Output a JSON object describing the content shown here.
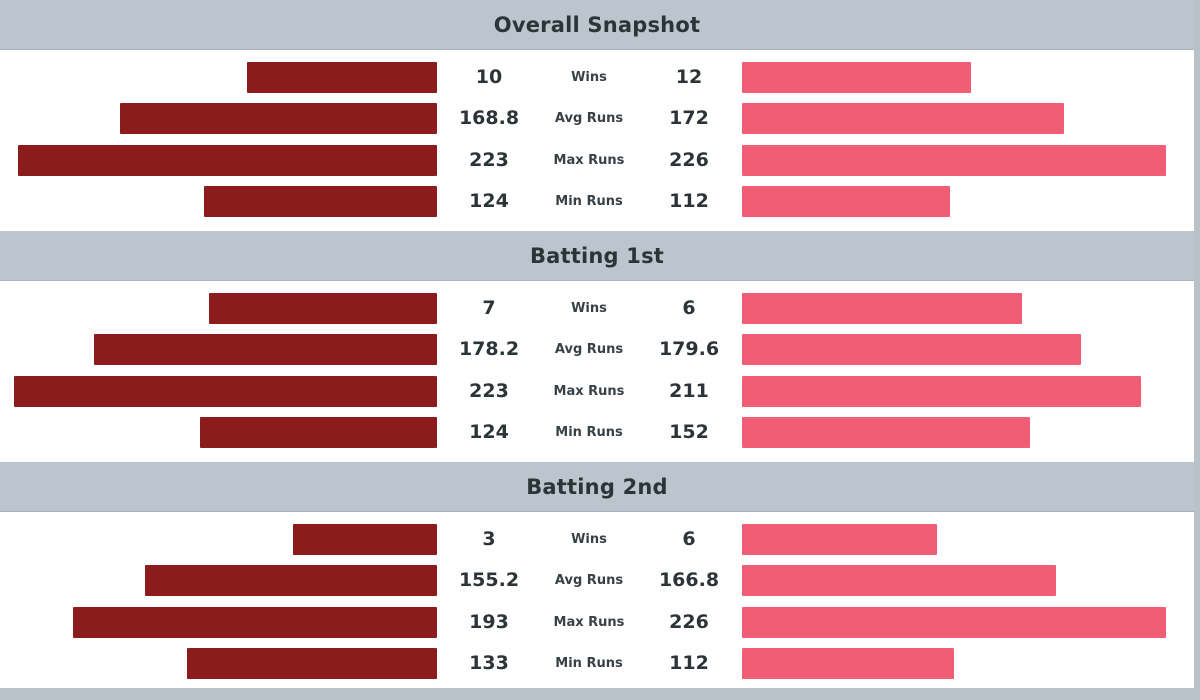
{
  "chart_data": {
    "type": "bar",
    "sections": [
      {
        "title": "Overall Snapshot",
        "rows": [
          {
            "label": "Wins",
            "left": "10",
            "right": "12",
            "left_fraction": 0.45,
            "right_fraction": 0.54
          },
          {
            "label": "Avg Runs",
            "left": "168.8",
            "right": "172",
            "left_fraction": 0.75,
            "right_fraction": 0.76
          },
          {
            "label": "Max Runs",
            "left": "223",
            "right": "226",
            "left_fraction": 0.99,
            "right_fraction": 1.0
          },
          {
            "label": "Min Runs",
            "left": "124",
            "right": "112",
            "left_fraction": 0.55,
            "right_fraction": 0.49
          }
        ]
      },
      {
        "title": "Batting 1st",
        "rows": [
          {
            "label": "Wins",
            "left": "7",
            "right": "6",
            "left_fraction": 0.54,
            "right_fraction": 0.66
          },
          {
            "label": "Avg Runs",
            "left": "178.2",
            "right": "179.6",
            "left_fraction": 0.81,
            "right_fraction": 0.8
          },
          {
            "label": "Max Runs",
            "left": "223",
            "right": "211",
            "left_fraction": 1.0,
            "right_fraction": 0.94
          },
          {
            "label": "Min Runs",
            "left": "124",
            "right": "152",
            "left_fraction": 0.56,
            "right_fraction": 0.68
          }
        ]
      },
      {
        "title": "Batting 2nd",
        "rows": [
          {
            "label": "Wins",
            "left": "3",
            "right": "6",
            "left_fraction": 0.34,
            "right_fraction": 0.46
          },
          {
            "label": "Avg Runs",
            "left": "155.2",
            "right": "166.8",
            "left_fraction": 0.69,
            "right_fraction": 0.74
          },
          {
            "label": "Max Runs",
            "left": "193",
            "right": "226",
            "left_fraction": 0.86,
            "right_fraction": 1.0
          },
          {
            "label": "Min Runs",
            "left": "133",
            "right": "112",
            "left_fraction": 0.59,
            "right_fraction": 0.5
          }
        ]
      }
    ],
    "colors": {
      "left": "#8c1c1c",
      "right": "#f25d76",
      "header": "#bcc5cd"
    }
  }
}
